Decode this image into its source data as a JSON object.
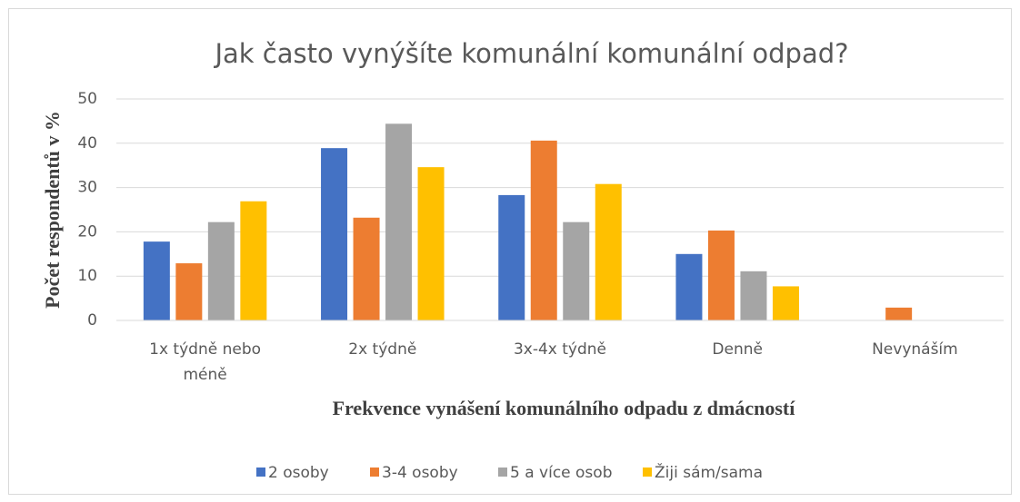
{
  "chart_data": {
    "type": "bar",
    "title": "Jak často vynýšíte komunální komunální odpad?",
    "x_label": "Frekvence vynášení komunálního odpadu z dmácností",
    "y_label": "Počet respondentů v %",
    "categories": [
      "1x týdně nebo méně",
      "2x týdně",
      "3x-4x týdně",
      "Denně",
      "Nevynáším"
    ],
    "series": [
      {
        "name": "2 osoby",
        "color": "#4472c4",
        "values": [
          17.8,
          38.9,
          28.3,
          15,
          0
        ]
      },
      {
        "name": "3-4 osoby",
        "color": "#ed7d31",
        "values": [
          12.9,
          23.2,
          40.6,
          20.3,
          2.9
        ]
      },
      {
        "name": "5 a více osob",
        "color": "#a5a5a5",
        "values": [
          22.2,
          44.4,
          22.2,
          11.1,
          0
        ]
      },
      {
        "name": "Žiji sám/sama",
        "color": "#ffc000",
        "values": [
          26.9,
          34.6,
          30.8,
          7.7,
          0
        ]
      }
    ],
    "ylim": [
      0,
      50
    ],
    "yticks": [
      0,
      10,
      20,
      30,
      40,
      50
    ],
    "grid": true,
    "legend": "bottom"
  }
}
